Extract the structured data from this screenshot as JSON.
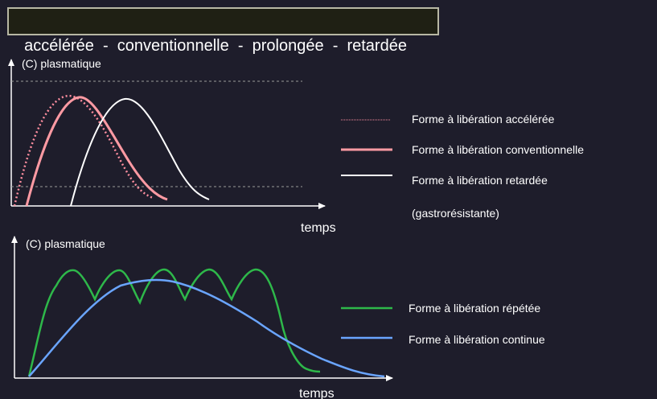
{
  "title": "accélérée  -  conventionnelle  -  prolongée  -  retardée",
  "colors": {
    "background": "#1e1d2b",
    "axis": "#ffffff",
    "accelerated": "#ff8fa0",
    "conventional": "#ff9aa3",
    "delayed": "#ffffff",
    "repeated": "#2eb84a",
    "continuous": "#6aa5ff"
  },
  "chart_data": [
    {
      "type": "line",
      "ylabel": "(C) plasmatique",
      "xlabel": "temps",
      "grid": false,
      "reference_lines": [
        "upper",
        "lower"
      ],
      "series": [
        {
          "name": "Forme à libération accélérée",
          "style": "dotted",
          "color": "#ff8fa0"
        },
        {
          "name": "Forme à libération conventionnelle",
          "style": "solid",
          "color": "#ff9aa3"
        },
        {
          "name": "Forme à libération retardée",
          "style": "solid",
          "color": "#ffffff"
        }
      ],
      "legend_extra": "(gastrorésistante)",
      "legend_position": "right"
    },
    {
      "type": "line",
      "ylabel": "(C) plasmatique",
      "xlabel": "temps",
      "grid": false,
      "series": [
        {
          "name": "Forme à libération répétée",
          "style": "solid",
          "color": "#2eb84a"
        },
        {
          "name": "Forme à libération continue",
          "style": "solid",
          "color": "#6aa5ff"
        }
      ],
      "legend_position": "right"
    }
  ]
}
